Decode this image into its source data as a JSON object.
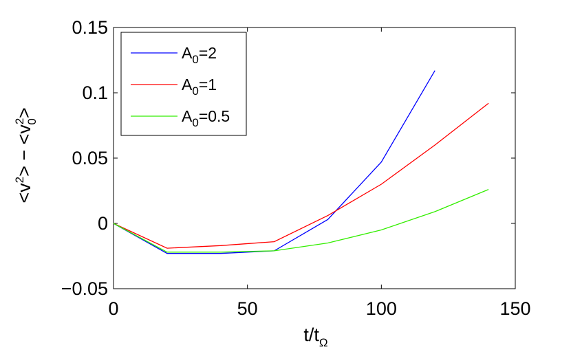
{
  "chart_data": {
    "type": "line",
    "xlabel": {
      "base": "t/t",
      "sub": "Ω"
    },
    "ylabel": {
      "a": "<v",
      "a_sup": "2",
      "b": "> − <v",
      "b_sup": "2",
      "b_sub": "0",
      "c": ">"
    },
    "xlim": [
      0,
      150
    ],
    "ylim": [
      -0.05,
      0.15
    ],
    "xticks": [
      0,
      50,
      100,
      150
    ],
    "xtick_labels": [
      "0",
      "50",
      "100",
      "150"
    ],
    "yticks": [
      -0.05,
      0,
      0.05,
      0.1,
      0.15
    ],
    "ytick_labels": [
      "−0.05",
      "0",
      "0.05",
      "0.1",
      "0.15"
    ],
    "grid": false,
    "legend_position": "top-left",
    "series": [
      {
        "name": "A",
        "name_sub": "0",
        "name_rest": "=2",
        "color": "#0000ff",
        "x": [
          0,
          20,
          40,
          60,
          80,
          100,
          120
        ],
        "y": [
          0,
          -0.023,
          -0.023,
          -0.021,
          0.003,
          0.047,
          0.117
        ]
      },
      {
        "name": "A",
        "name_sub": "0",
        "name_rest": "=1",
        "color": "#ff0000",
        "x": [
          0,
          20,
          40,
          60,
          80,
          100,
          120,
          140
        ],
        "y": [
          0,
          -0.019,
          -0.017,
          -0.014,
          0.006,
          0.03,
          0.06,
          0.092
        ]
      },
      {
        "name": "A",
        "name_sub": "0",
        "name_rest": "=0.5",
        "color": "#33ee00",
        "x": [
          0,
          20,
          40,
          60,
          80,
          100,
          120,
          140
        ],
        "y": [
          0,
          -0.022,
          -0.022,
          -0.021,
          -0.015,
          -0.005,
          0.009,
          0.026
        ]
      }
    ]
  }
}
